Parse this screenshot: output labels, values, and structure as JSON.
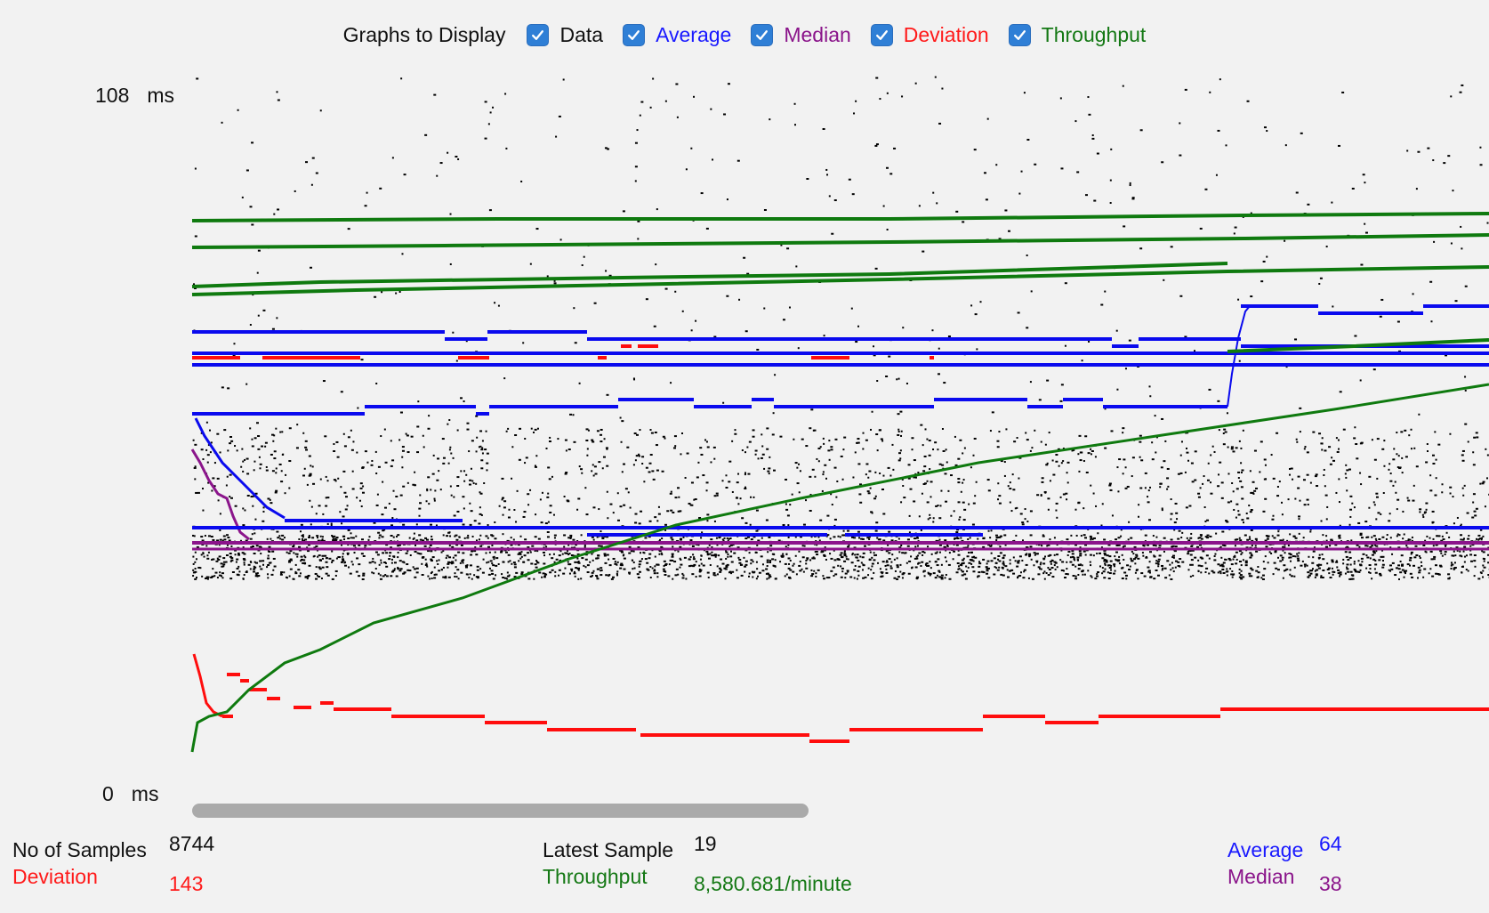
{
  "header": {
    "title": "Graphs to Display",
    "toggles": [
      {
        "label": "Data",
        "checked": true,
        "color": "#111111"
      },
      {
        "label": "Average",
        "checked": true,
        "color": "#1a1aff"
      },
      {
        "label": "Median",
        "checked": true,
        "color": "#8a148a"
      },
      {
        "label": "Deviation",
        "checked": true,
        "color": "#ff1a1a"
      },
      {
        "label": "Throughput",
        "checked": true,
        "color": "#147814"
      }
    ]
  },
  "axis": {
    "max_value": "108",
    "min_value": "0",
    "unit": "ms"
  },
  "colors": {
    "data": "#000000",
    "average": "#0a0aee",
    "median": "#8b158b",
    "deviation": "#ff0d0d",
    "throughput": "#0f7a0f",
    "scrollbar": "#aaaaaa"
  },
  "stats": {
    "samples_label": "No of Samples",
    "samples_value": "8744",
    "deviation_label": "Deviation",
    "deviation_value": "143",
    "latest_label": "Latest Sample",
    "latest_value": "19",
    "throughput_label": "Throughput",
    "throughput_value": "8,580.681/minute",
    "average_label": "Average",
    "average_value": "64",
    "median_label": "Median",
    "median_value": "38"
  }
}
